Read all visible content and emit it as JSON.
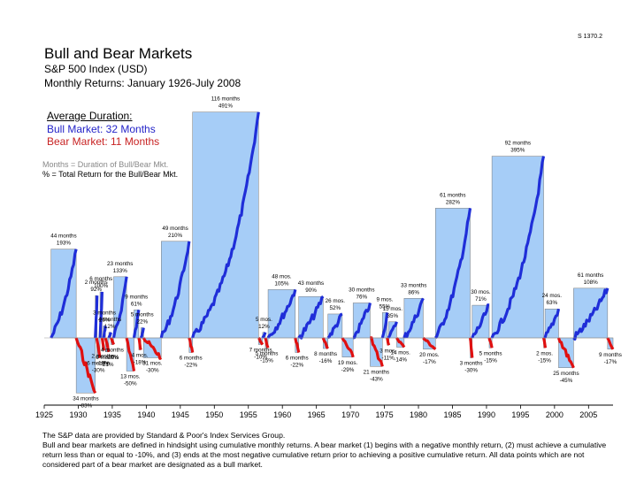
{
  "code": "S 1370.2",
  "header": {
    "title": "Bull and Bear Markets",
    "subtitle": "S&P 500 Index (USD)",
    "subtitle2": "Monthly Returns: January 1926-July 2008"
  },
  "averages": {
    "heading": "Average Duration:",
    "bull": "Bull Market: 32 Months",
    "bear": "Bear Market: 11 Months"
  },
  "legend": {
    "months": "Months = Duration of Bull/Bear Mkt.",
    "percent": "% = Total Return for the Bull/Bear Mkt."
  },
  "colors": {
    "bull_fill": "#a6cdf7",
    "bull_line": "#1f2ed8",
    "bear_fill": "#a6cdf7",
    "bear_line": "#e01010"
  },
  "footnote": {
    "line1": "The S&P data are provided by Standard & Poor's Index Services Group.",
    "line2": "Bull and bear markets are defined in hindsight using cumulative monthly returns. A bear market (1) begins with a negative monthly return, (2) must achieve a cumulative return less than or equal to -10%, and (3) ends at the most negative cumulative return prior to achieving a positive cumulative return. All data points which are not considered part of a bear market are designated as a bull market."
  },
  "chart_data": {
    "type": "bar",
    "x_ticks": [
      "1925",
      "1930",
      "1935",
      "1940",
      "1945",
      "1950",
      "1955",
      "1960",
      "1965",
      "1970",
      "1975",
      "1980",
      "1985",
      "1990",
      "1995",
      "2000",
      "2005"
    ],
    "x_range": [
      1925,
      2008.6
    ],
    "markets": [
      {
        "type": "bull",
        "start": 1926.0,
        "end": 1929.7,
        "months": "44 months",
        "ret": "193%",
        "value": 193
      },
      {
        "type": "bear",
        "start": 1929.7,
        "end": 1932.5,
        "months": "34 months",
        "ret": "-83%",
        "value": -83
      },
      {
        "type": "bull",
        "start": 1932.5,
        "end": 1932.7,
        "months": "2 months",
        "ret": "92%",
        "value": 92
      },
      {
        "type": "bear",
        "start": 1932.7,
        "end": 1933.2,
        "months": "6 months",
        "ret": "-30%",
        "value": -30
      },
      {
        "type": "bull",
        "start": 1933.2,
        "end": 1933.5,
        "months": "6 months",
        "ret": "100%",
        "value": 100
      },
      {
        "type": "bear",
        "start": 1933.5,
        "end": 1933.7,
        "months": "2 months",
        "ret": "-19%",
        "value": -19
      },
      {
        "type": "bull",
        "start": 1933.7,
        "end": 1934.0,
        "months": "3 months",
        "ret": "26%",
        "value": 26
      },
      {
        "type": "bear",
        "start": 1934.0,
        "end": 1934.5,
        "months": "6 months",
        "ret": "-21%",
        "value": -21
      },
      {
        "type": "bull",
        "start": 1934.5,
        "end": 1934.8,
        "months": "4 months",
        "ret": "12%",
        "value": 12
      },
      {
        "type": "bear",
        "start": 1934.8,
        "end": 1935.2,
        "months": "4 months",
        "ret": "-10%",
        "value": -10
      },
      {
        "type": "bull",
        "start": 1935.2,
        "end": 1937.1,
        "months": "23 months",
        "ret": "133%",
        "value": 133
      },
      {
        "type": "bear",
        "start": 1937.1,
        "end": 1938.2,
        "months": "13 mos.",
        "ret": "-50%",
        "value": -50
      },
      {
        "type": "bull",
        "start": 1938.2,
        "end": 1938.9,
        "months": "9 months",
        "ret": "61%",
        "value": 61
      },
      {
        "type": "bear",
        "start": 1938.9,
        "end": 1939.2,
        "months": "4 mos.",
        "ret": "-18%",
        "value": -18
      },
      {
        "type": "bull",
        "start": 1939.2,
        "end": 1939.6,
        "months": "5 months",
        "ret": "22%",
        "value": 22
      },
      {
        "type": "bear",
        "start": 1939.6,
        "end": 1942.2,
        "months": "31 mos.",
        "ret": "-30%",
        "value": -30
      },
      {
        "type": "bull",
        "start": 1942.2,
        "end": 1946.3,
        "months": "49 months",
        "ret": "210%",
        "value": 210
      },
      {
        "type": "bear",
        "start": 1946.3,
        "end": 1946.8,
        "months": "6 months",
        "ret": "-22%",
        "value": -22
      },
      {
        "type": "bull",
        "start": 1946.8,
        "end": 1956.5,
        "months": "116 months",
        "ret": "491%",
        "value": 491
      },
      {
        "type": "bear",
        "start": 1956.5,
        "end": 1957.1,
        "months": "7 months",
        "ret": "-10%",
        "value": -10
      },
      {
        "type": "bull",
        "start": 1957.1,
        "end": 1957.5,
        "months": "5 mos.",
        "ret": "12%",
        "value": 12
      },
      {
        "type": "bear",
        "start": 1957.5,
        "end": 1957.9,
        "months": "5 months",
        "ret": "-15%",
        "value": -15
      },
      {
        "type": "bull",
        "start": 1957.9,
        "end": 1961.9,
        "months": "48 mos.",
        "ret": "105%",
        "value": 105
      },
      {
        "type": "bear",
        "start": 1961.9,
        "end": 1962.4,
        "months": "6 months",
        "ret": "-22%",
        "value": -22
      },
      {
        "type": "bull",
        "start": 1962.4,
        "end": 1966.0,
        "months": "43 months",
        "ret": "90%",
        "value": 90
      },
      {
        "type": "bear",
        "start": 1966.0,
        "end": 1966.7,
        "months": "8 months",
        "ret": "-16%",
        "value": -16
      },
      {
        "type": "bull",
        "start": 1966.7,
        "end": 1968.8,
        "months": "26 mos.",
        "ret": "52%",
        "value": 52
      },
      {
        "type": "bear",
        "start": 1968.8,
        "end": 1970.4,
        "months": "19 mos.",
        "ret": "-29%",
        "value": -29
      },
      {
        "type": "bull",
        "start": 1970.4,
        "end": 1972.9,
        "months": "30 months",
        "ret": "76%",
        "value": 76
      },
      {
        "type": "bear",
        "start": 1972.9,
        "end": 1974.7,
        "months": "21 months",
        "ret": "-43%",
        "value": -43
      },
      {
        "type": "bull",
        "start": 1974.7,
        "end": 1975.4,
        "months": "9 mos.",
        "ret": "55%",
        "value": 55
      },
      {
        "type": "bear",
        "start": 1975.4,
        "end": 1975.6,
        "months": "3 mos.",
        "ret": "-11%",
        "value": -11
      },
      {
        "type": "bull",
        "start": 1975.6,
        "end": 1976.8,
        "months": "15 mos.",
        "ret": "35%",
        "value": 35
      },
      {
        "type": "bear",
        "start": 1976.8,
        "end": 1977.9,
        "months": "14 mos.",
        "ret": "-14%",
        "value": -14
      },
      {
        "type": "bull",
        "start": 1977.9,
        "end": 1980.7,
        "months": "33 months",
        "ret": "86%",
        "value": 86
      },
      {
        "type": "bear",
        "start": 1980.7,
        "end": 1982.5,
        "months": "20 mos.",
        "ret": "-17%",
        "value": -17
      },
      {
        "type": "bull",
        "start": 1982.5,
        "end": 1987.6,
        "months": "61 months",
        "ret": "282%",
        "value": 282
      },
      {
        "type": "bear",
        "start": 1987.6,
        "end": 1987.9,
        "months": "3 months",
        "ret": "-30%",
        "value": -30
      },
      {
        "type": "bull",
        "start": 1987.9,
        "end": 1990.4,
        "months": "30 mos.",
        "ret": "71%",
        "value": 71
      },
      {
        "type": "bear",
        "start": 1990.4,
        "end": 1990.8,
        "months": "5 months",
        "ret": "-15%",
        "value": -15
      },
      {
        "type": "bull",
        "start": 1990.8,
        "end": 1998.4,
        "months": "92 months",
        "ret": "395%",
        "value": 395
      },
      {
        "type": "bear",
        "start": 1998.4,
        "end": 1998.6,
        "months": "2 mos.",
        "ret": "-15%",
        "value": -15
      },
      {
        "type": "bull",
        "start": 1998.6,
        "end": 2000.6,
        "months": "24 mos.",
        "ret": "63%",
        "value": 63
      },
      {
        "type": "bear",
        "start": 2000.6,
        "end": 2002.8,
        "months": "25 months",
        "ret": "-45%",
        "value": -45
      },
      {
        "type": "bull",
        "start": 2002.8,
        "end": 2007.8,
        "months": "61 months",
        "ret": "108%",
        "value": 108
      },
      {
        "type": "bear",
        "start": 2007.8,
        "end": 2008.6,
        "months": "9 months",
        "ret": "-17%",
        "value": -17
      }
    ]
  }
}
